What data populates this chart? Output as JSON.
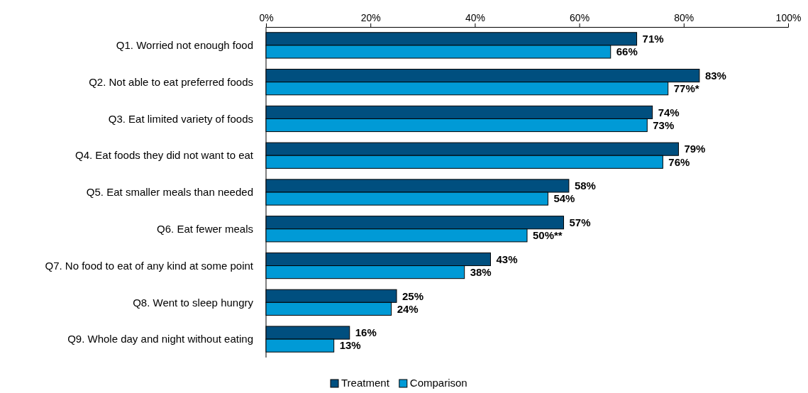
{
  "chart_data": {
    "type": "bar",
    "orientation": "horizontal",
    "categories": [
      "Q1. Worried not enough food",
      "Q2. Not able to eat preferred foods",
      "Q3. Eat limited variety of foods",
      "Q4. Eat foods they did not want to eat",
      "Q5. Eat smaller meals than needed",
      "Q6. Eat fewer meals",
      "Q7. No food to eat of any kind at some point",
      "Q8. Went to sleep hungry",
      "Q9. Whole day and night without eating"
    ],
    "series": [
      {
        "name": "Treatment",
        "color": "#004f7f",
        "values": [
          71,
          83,
          74,
          79,
          58,
          57,
          43,
          25,
          16
        ],
        "value_labels": [
          "71%",
          "83%",
          "74%",
          "79%",
          "58%",
          "57%",
          "43%",
          "25%",
          "16%"
        ]
      },
      {
        "name": "Comparison",
        "color": "#009ad6",
        "values": [
          66,
          77,
          73,
          76,
          54,
          50,
          38,
          24,
          13
        ],
        "value_labels": [
          "66%",
          "77%*",
          "73%",
          "76%",
          "54%",
          "50%**",
          "38%",
          "24%",
          "13%"
        ]
      }
    ],
    "xlim": [
      0,
      100
    ],
    "xticks": [
      {
        "value": 0,
        "label": "0%"
      },
      {
        "value": 20,
        "label": "20%"
      },
      {
        "value": 40,
        "label": "40%"
      },
      {
        "value": 60,
        "label": "60%"
      },
      {
        "value": 80,
        "label": "80%"
      },
      {
        "value": 100,
        "label": "100%"
      }
    ],
    "grid": false,
    "legend": "bottom"
  }
}
